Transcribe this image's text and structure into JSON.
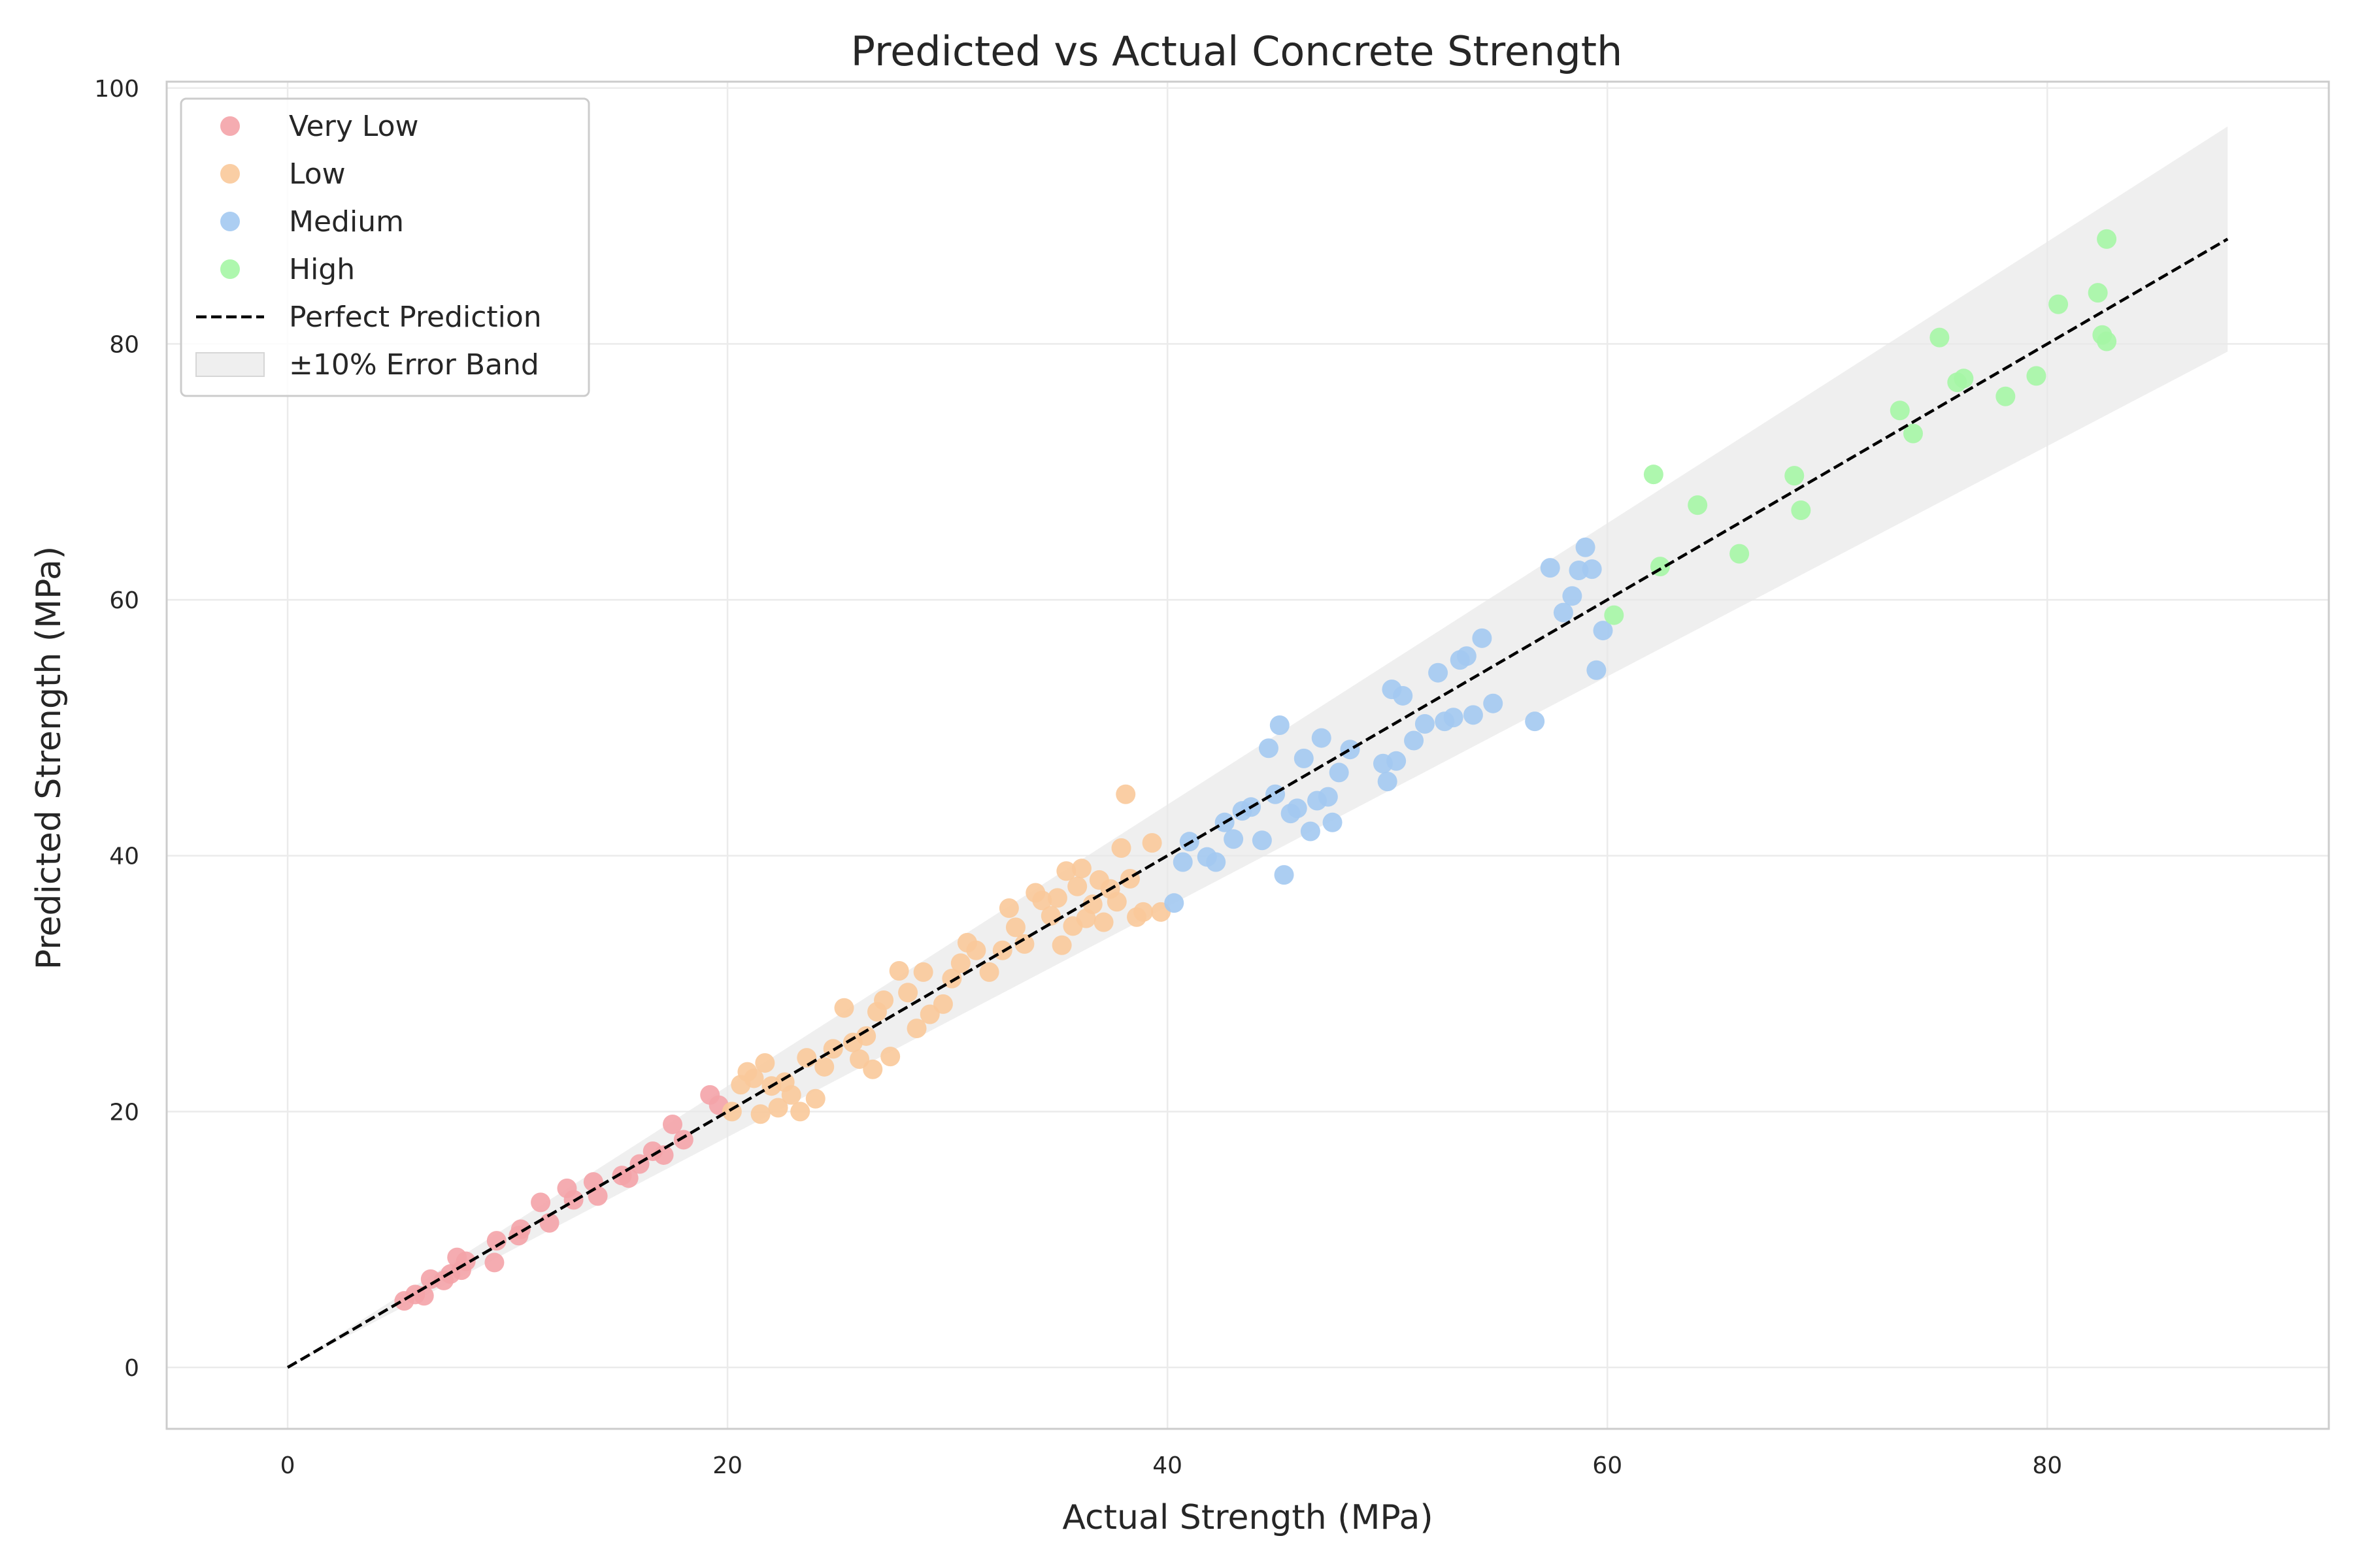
{
  "chart_data": {
    "type": "scatter",
    "title": "Predicted vs Actual Concrete Strength",
    "xlabel": "Actual Strength (MPa)",
    "ylabel": "Predicted Strength (MPa)",
    "xlim": [
      -5.5,
      92.8
    ],
    "ylim": [
      -4.8,
      100.5
    ],
    "xticks": [
      0,
      20,
      40,
      60,
      80
    ],
    "yticks": [
      0,
      20,
      40,
      60,
      80,
      100
    ],
    "grid": true,
    "legend_position": "top-left",
    "series": [
      {
        "name": "Very Low",
        "color": "#f4a3a8",
        "points": [
          [
            5.3,
            5.2
          ],
          [
            5.8,
            5.7
          ],
          [
            6.2,
            5.6
          ],
          [
            6.5,
            6.9
          ],
          [
            7.1,
            6.8
          ],
          [
            7.4,
            7.3
          ],
          [
            7.7,
            8.6
          ],
          [
            7.9,
            7.6
          ],
          [
            8.1,
            8.3
          ],
          [
            9.4,
            8.2
          ],
          [
            9.5,
            9.9
          ],
          [
            10.5,
            10.3
          ],
          [
            10.6,
            10.8
          ],
          [
            11.5,
            12.9
          ],
          [
            11.9,
            11.3
          ],
          [
            12.7,
            14.0
          ],
          [
            13.0,
            13.1
          ],
          [
            13.9,
            14.5
          ],
          [
            14.1,
            13.4
          ],
          [
            15.2,
            15.0
          ],
          [
            15.5,
            14.8
          ],
          [
            16.0,
            15.9
          ],
          [
            16.6,
            16.9
          ],
          [
            17.1,
            16.6
          ],
          [
            17.5,
            19.0
          ],
          [
            18.0,
            17.8
          ],
          [
            19.2,
            21.3
          ],
          [
            19.6,
            20.5
          ]
        ]
      },
      {
        "name": "Low",
        "color": "#f9c99a",
        "points": [
          [
            20.2,
            20.0
          ],
          [
            20.6,
            22.1
          ],
          [
            20.9,
            23.1
          ],
          [
            21.2,
            22.6
          ],
          [
            21.5,
            19.8
          ],
          [
            21.7,
            23.8
          ],
          [
            22.0,
            22.0
          ],
          [
            22.3,
            20.3
          ],
          [
            22.6,
            22.3
          ],
          [
            22.9,
            21.3
          ],
          [
            23.3,
            20.0
          ],
          [
            23.6,
            24.2
          ],
          [
            24.0,
            21.0
          ],
          [
            24.4,
            23.5
          ],
          [
            24.8,
            24.9
          ],
          [
            25.3,
            28.1
          ],
          [
            25.7,
            25.4
          ],
          [
            26.0,
            24.1
          ],
          [
            26.3,
            25.9
          ],
          [
            26.6,
            23.3
          ],
          [
            26.8,
            27.8
          ],
          [
            27.1,
            28.7
          ],
          [
            27.4,
            24.3
          ],
          [
            27.8,
            31.0
          ],
          [
            28.2,
            29.3
          ],
          [
            28.6,
            26.5
          ],
          [
            28.9,
            30.9
          ],
          [
            29.2,
            27.6
          ],
          [
            29.8,
            28.4
          ],
          [
            30.2,
            30.4
          ],
          [
            30.6,
            31.6
          ],
          [
            30.9,
            33.2
          ],
          [
            31.3,
            32.6
          ],
          [
            31.9,
            30.9
          ],
          [
            32.5,
            32.6
          ],
          [
            32.8,
            35.9
          ],
          [
            33.1,
            34.4
          ],
          [
            33.5,
            33.1
          ],
          [
            34.0,
            37.1
          ],
          [
            34.3,
            36.5
          ],
          [
            34.7,
            35.3
          ],
          [
            35.0,
            36.7
          ],
          [
            35.2,
            33.0
          ],
          [
            35.4,
            38.8
          ],
          [
            35.7,
            34.5
          ],
          [
            35.9,
            37.6
          ],
          [
            36.1,
            39.0
          ],
          [
            36.3,
            35.1
          ],
          [
            36.6,
            36.2
          ],
          [
            36.9,
            38.1
          ],
          [
            37.1,
            34.8
          ],
          [
            37.4,
            37.4
          ],
          [
            37.7,
            36.4
          ],
          [
            37.9,
            40.6
          ],
          [
            38.1,
            44.8
          ],
          [
            38.3,
            38.2
          ],
          [
            38.6,
            35.2
          ],
          [
            38.9,
            35.6
          ],
          [
            39.3,
            41.0
          ],
          [
            39.7,
            35.6
          ]
        ]
      },
      {
        "name": "Medium",
        "color": "#a3c9f1",
        "points": [
          [
            40.3,
            36.3
          ],
          [
            40.7,
            39.5
          ],
          [
            41.0,
            41.1
          ],
          [
            41.8,
            39.9
          ],
          [
            42.2,
            39.5
          ],
          [
            42.6,
            42.6
          ],
          [
            43.0,
            41.3
          ],
          [
            43.4,
            43.5
          ],
          [
            43.8,
            43.8
          ],
          [
            44.3,
            41.2
          ],
          [
            44.6,
            48.4
          ],
          [
            44.9,
            44.8
          ],
          [
            45.1,
            50.2
          ],
          [
            45.3,
            38.5
          ],
          [
            45.6,
            43.3
          ],
          [
            45.9,
            43.7
          ],
          [
            46.2,
            47.6
          ],
          [
            46.5,
            41.9
          ],
          [
            46.8,
            44.3
          ],
          [
            47.0,
            49.2
          ],
          [
            47.3,
            44.6
          ],
          [
            47.5,
            42.6
          ],
          [
            47.8,
            46.5
          ],
          [
            48.3,
            48.3
          ],
          [
            49.8,
            47.2
          ],
          [
            50.0,
            45.8
          ],
          [
            50.2,
            53.0
          ],
          [
            50.4,
            47.4
          ],
          [
            50.7,
            52.5
          ],
          [
            51.2,
            49.0
          ],
          [
            51.7,
            50.3
          ],
          [
            52.3,
            54.3
          ],
          [
            52.6,
            50.5
          ],
          [
            53.0,
            50.8
          ],
          [
            53.3,
            55.3
          ],
          [
            53.6,
            55.6
          ],
          [
            53.9,
            51.0
          ],
          [
            54.3,
            57.0
          ],
          [
            54.8,
            51.9
          ],
          [
            56.7,
            50.5
          ],
          [
            57.4,
            62.5
          ],
          [
            58.0,
            59.0
          ],
          [
            58.4,
            60.3
          ],
          [
            58.7,
            62.3
          ],
          [
            59.0,
            64.1
          ],
          [
            59.3,
            62.4
          ],
          [
            59.5,
            54.5
          ],
          [
            59.8,
            57.6
          ]
        ]
      },
      {
        "name": "High",
        "color": "#a5f6a5",
        "points": [
          [
            60.3,
            58.8
          ],
          [
            62.1,
            69.8
          ],
          [
            62.4,
            62.6
          ],
          [
            64.1,
            67.4
          ],
          [
            66.0,
            63.6
          ],
          [
            68.5,
            69.7
          ],
          [
            68.8,
            67.0
          ],
          [
            73.3,
            74.8
          ],
          [
            73.9,
            73.0
          ],
          [
            75.1,
            80.5
          ],
          [
            75.9,
            77.0
          ],
          [
            76.2,
            77.3
          ],
          [
            78.1,
            75.9
          ],
          [
            79.5,
            77.5
          ],
          [
            80.5,
            83.1
          ],
          [
            82.3,
            84.0
          ],
          [
            82.5,
            80.7
          ],
          [
            82.7,
            80.2
          ],
          [
            82.7,
            88.2
          ]
        ]
      }
    ],
    "reference_line": {
      "name": "Perfect Prediction",
      "x": [
        0,
        88.2
      ],
      "y": [
        0,
        88.2
      ],
      "color": "#000000",
      "dash": "dashed"
    },
    "error_band": {
      "name": "±10% Error Band",
      "x": [
        0,
        88.2
      ],
      "y_lower": [
        0,
        79.4
      ],
      "y_upper": [
        0,
        97.0
      ],
      "color": "#e8e8e8"
    }
  }
}
